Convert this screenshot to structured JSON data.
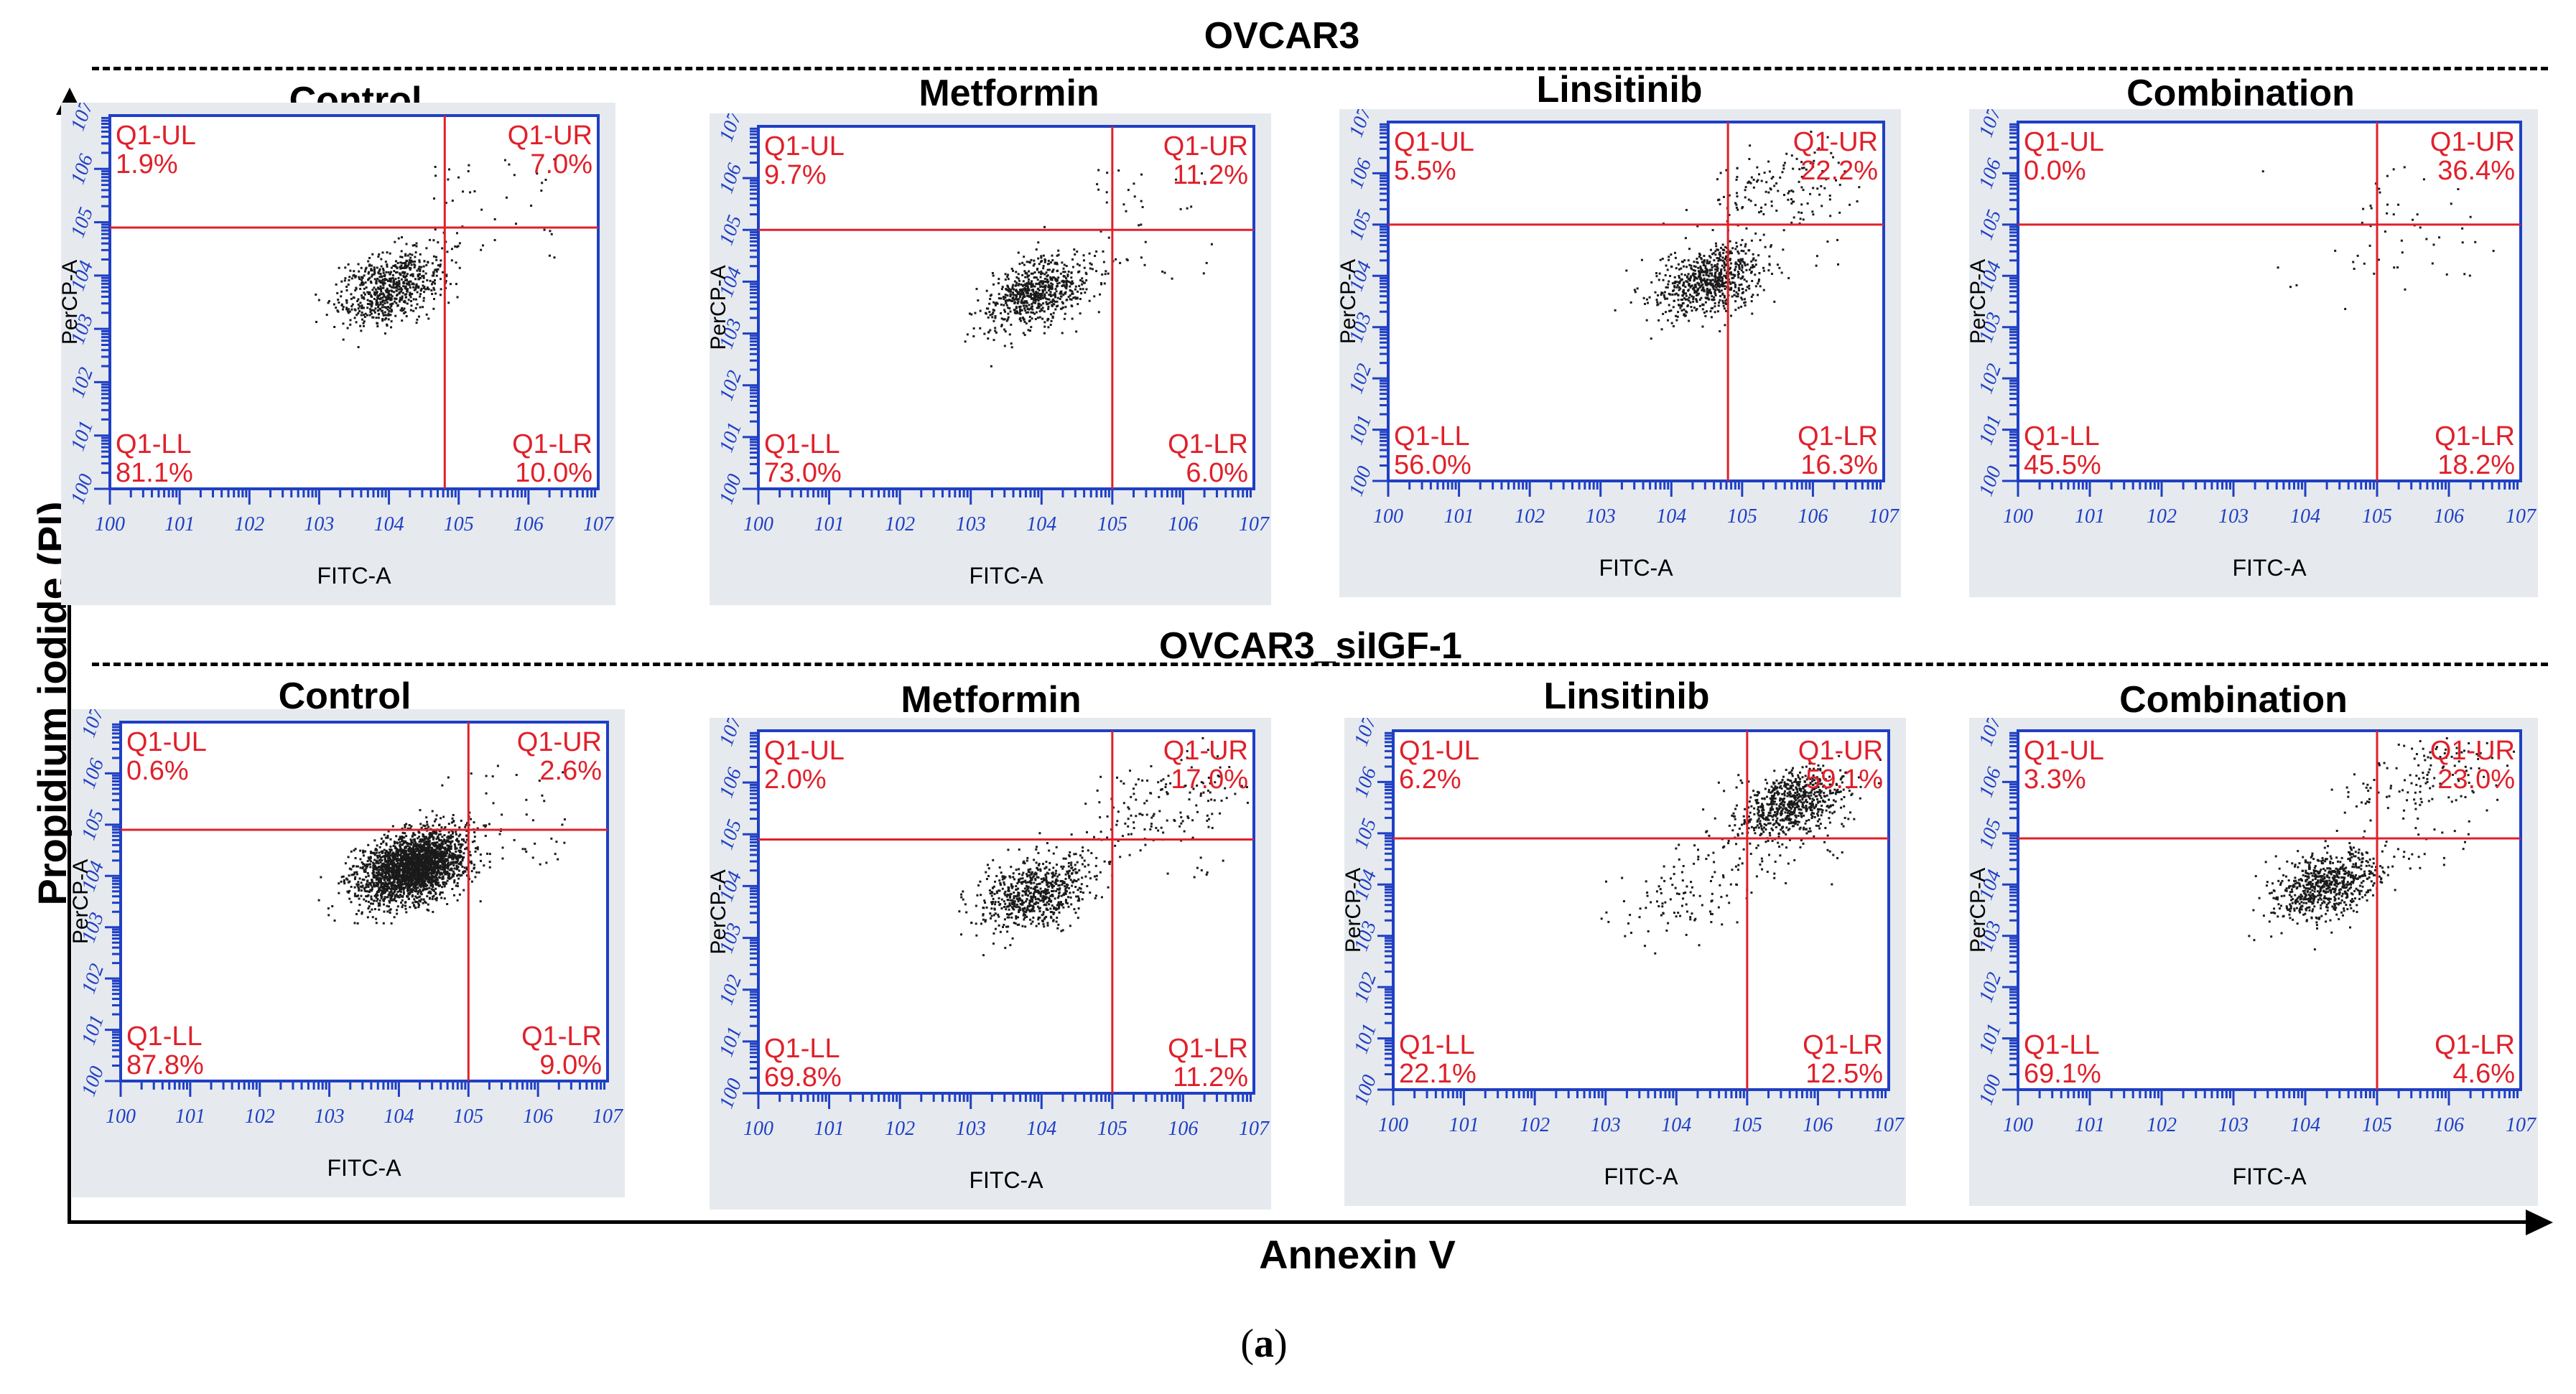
{
  "figure": {
    "y_title": "Propidium iodide (PI)",
    "x_title": "Annexin V",
    "caption_open": "(",
    "caption_letter": "a",
    "caption_close": ")"
  },
  "colors": {
    "plot_frame": "#1f3fc4",
    "gate": "#e0202a",
    "label": "#e0202a",
    "panel_bg": "#e6eaee",
    "dots": "#1a1a1a"
  },
  "rows": [
    {
      "title": "OVCAR3",
      "panels": [
        {
          "title": "Control",
          "xlabel": "FITC-A",
          "ylabel": "PerCP-A",
          "quadrants": {
            "UL": {
              "name": "Q1-UL",
              "value": "1.9%"
            },
            "UR": {
              "name": "Q1-UR",
              "value": "7.0%"
            },
            "LL": {
              "name": "Q1-LL",
              "value": "81.1%"
            },
            "LR": {
              "name": "Q1-LR",
              "value": "10.0%"
            }
          }
        },
        {
          "title": "Metformin",
          "xlabel": "FITC-A",
          "ylabel": "PerCP-A",
          "quadrants": {
            "UL": {
              "name": "Q1-UL",
              "value": "9.7%"
            },
            "UR": {
              "name": "Q1-UR",
              "value": "11.2%"
            },
            "LL": {
              "name": "Q1-LL",
              "value": "73.0%"
            },
            "LR": {
              "name": "Q1-LR",
              "value": "6.0%"
            }
          }
        },
        {
          "title": "Linsitinib",
          "xlabel": "FITC-A",
          "ylabel": "PerCP-A",
          "quadrants": {
            "UL": {
              "name": "Q1-UL",
              "value": "5.5%"
            },
            "UR": {
              "name": "Q1-UR",
              "value": "22.2%"
            },
            "LL": {
              "name": "Q1-LL",
              "value": "56.0%"
            },
            "LR": {
              "name": "Q1-LR",
              "value": "16.3%"
            }
          }
        },
        {
          "title": "Combination",
          "xlabel": "FITC-A",
          "ylabel": "PerCP-A",
          "quadrants": {
            "UL": {
              "name": "Q1-UL",
              "value": "0.0%"
            },
            "UR": {
              "name": "Q1-UR",
              "value": "36.4%"
            },
            "LL": {
              "name": "Q1-LL",
              "value": "45.5%"
            },
            "LR": {
              "name": "Q1-LR",
              "value": "18.2%"
            }
          }
        }
      ]
    },
    {
      "title": "OVCAR3_siIGF-1",
      "panels": [
        {
          "title": "Control",
          "xlabel": "FITC-A",
          "ylabel": "PerCP-A",
          "quadrants": {
            "UL": {
              "name": "Q1-UL",
              "value": "0.6%"
            },
            "UR": {
              "name": "Q1-UR",
              "value": "2.6%"
            },
            "LL": {
              "name": "Q1-LL",
              "value": "87.8%"
            },
            "LR": {
              "name": "Q1-LR",
              "value": "9.0%"
            }
          }
        },
        {
          "title": "Metformin",
          "xlabel": "FITC-A",
          "ylabel": "PerCP-A",
          "quadrants": {
            "UL": {
              "name": "Q1-UL",
              "value": "2.0%"
            },
            "UR": {
              "name": "Q1-UR",
              "value": "17.0%"
            },
            "LL": {
              "name": "Q1-LL",
              "value": "69.8%"
            },
            "LR": {
              "name": "Q1-LR",
              "value": "11.2%"
            }
          }
        },
        {
          "title": "Linsitinib",
          "xlabel": "FITC-A",
          "ylabel": "PerCP-A",
          "quadrants": {
            "UL": {
              "name": "Q1-UL",
              "value": "6.2%"
            },
            "UR": {
              "name": "Q1-UR",
              "value": "59.1%"
            },
            "LL": {
              "name": "Q1-LL",
              "value": "22.1%"
            },
            "LR": {
              "name": "Q1-LR",
              "value": "12.5%"
            }
          }
        },
        {
          "title": "Combination",
          "xlabel": "FITC-A",
          "ylabel": "PerCP-A",
          "quadrants": {
            "UL": {
              "name": "Q1-UL",
              "value": "3.3%"
            },
            "UR": {
              "name": "Q1-UR",
              "value": "23.0%"
            },
            "LL": {
              "name": "Q1-LL",
              "value": "69.1%"
            },
            "LR": {
              "name": "Q1-LR",
              "value": "4.6%"
            }
          }
        }
      ]
    }
  ],
  "chart_data": [
    {
      "type": "scatter",
      "panel": "OVCAR3 / Control",
      "xscale": "log",
      "yscale": "log",
      "xlim_decades": [
        0,
        7
      ],
      "ylim_decades": [
        0,
        7
      ],
      "gate_decades": {
        "x": 4.8,
        "y": 4.9
      },
      "population_centers": [
        {
          "x_decade": 4.0,
          "y_decade": 3.8,
          "weight": "dominant"
        }
      ],
      "quadrant_percent": {
        "UL": 1.9,
        "UR": 7.0,
        "LL": 81.1,
        "LR": 10.0
      }
    },
    {
      "type": "scatter",
      "panel": "OVCAR3 / Metformin",
      "xscale": "log",
      "yscale": "log",
      "xlim_decades": [
        0,
        7
      ],
      "ylim_decades": [
        0,
        7
      ],
      "gate_decades": {
        "x": 5.0,
        "y": 5.0
      },
      "population_centers": [
        {
          "x_decade": 3.9,
          "y_decade": 3.8,
          "weight": "dominant"
        }
      ],
      "quadrant_percent": {
        "UL": 9.7,
        "UR": 11.2,
        "LL": 73.0,
        "LR": 6.0
      }
    },
    {
      "type": "scatter",
      "panel": "OVCAR3 / Linsitinib",
      "xscale": "log",
      "yscale": "log",
      "xlim_decades": [
        0,
        7
      ],
      "ylim_decades": [
        0,
        7
      ],
      "gate_decades": {
        "x": 4.8,
        "y": 5.0
      },
      "population_centers": [
        {
          "x_decade": 4.5,
          "y_decade": 3.9,
          "weight": "dominant"
        },
        {
          "x_decade": 5.5,
          "y_decade": 5.7,
          "weight": "minor"
        }
      ],
      "quadrant_percent": {
        "UL": 5.5,
        "UR": 22.2,
        "LL": 56.0,
        "LR": 16.3
      }
    },
    {
      "type": "scatter",
      "panel": "OVCAR3 / Combination",
      "xscale": "log",
      "yscale": "log",
      "xlim_decades": [
        0,
        7
      ],
      "ylim_decades": [
        0,
        7
      ],
      "gate_decades": {
        "x": 5.0,
        "y": 5.0
      },
      "population_centers": [
        {
          "x_decade": 4.5,
          "y_decade": 4.0,
          "weight": "sparse"
        }
      ],
      "quadrant_percent": {
        "UL": 0.0,
        "UR": 36.4,
        "LL": 45.5,
        "LR": 18.2
      }
    },
    {
      "type": "scatter",
      "panel": "OVCAR3_siIGF-1 / Control",
      "xscale": "log",
      "yscale": "log",
      "xlim_decades": [
        0,
        7
      ],
      "ylim_decades": [
        0,
        7
      ],
      "gate_decades": {
        "x": 5.0,
        "y": 4.9
      },
      "population_centers": [
        {
          "x_decade": 4.2,
          "y_decade": 4.2,
          "weight": "dominant"
        }
      ],
      "quadrant_percent": {
        "UL": 0.6,
        "UR": 2.6,
        "LL": 87.8,
        "LR": 9.0
      }
    },
    {
      "type": "scatter",
      "panel": "OVCAR3_siIGF-1 / Metformin",
      "xscale": "log",
      "yscale": "log",
      "xlim_decades": [
        0,
        7
      ],
      "ylim_decades": [
        0,
        7
      ],
      "gate_decades": {
        "x": 5.0,
        "y": 4.9
      },
      "population_centers": [
        {
          "x_decade": 3.9,
          "y_decade": 3.9,
          "weight": "dominant"
        },
        {
          "x_decade": 5.9,
          "y_decade": 5.7,
          "weight": "minor"
        }
      ],
      "quadrant_percent": {
        "UL": 2.0,
        "UR": 17.0,
        "LL": 69.8,
        "LR": 11.2
      }
    },
    {
      "type": "scatter",
      "panel": "OVCAR3_siIGF-1 / Linsitinib",
      "xscale": "log",
      "yscale": "log",
      "xlim_decades": [
        0,
        7
      ],
      "ylim_decades": [
        0,
        7
      ],
      "gate_decades": {
        "x": 5.0,
        "y": 4.9
      },
      "population_centers": [
        {
          "x_decade": 5.6,
          "y_decade": 5.6,
          "weight": "dominant"
        },
        {
          "x_decade": 4.2,
          "y_decade": 3.8,
          "weight": "minor"
        }
      ],
      "quadrant_percent": {
        "UL": 6.2,
        "UR": 59.1,
        "LL": 22.1,
        "LR": 12.5
      }
    },
    {
      "type": "scatter",
      "panel": "OVCAR3_siIGF-1 / Combination",
      "xscale": "log",
      "yscale": "log",
      "xlim_decades": [
        0,
        7
      ],
      "ylim_decades": [
        0,
        7
      ],
      "gate_decades": {
        "x": 5.0,
        "y": 4.9
      },
      "population_centers": [
        {
          "x_decade": 4.3,
          "y_decade": 4.0,
          "weight": "dominant"
        },
        {
          "x_decade": 5.8,
          "y_decade": 6.2,
          "weight": "minor"
        }
      ],
      "quadrant_percent": {
        "UL": 3.3,
        "UR": 23.0,
        "LL": 69.1,
        "LR": 4.6
      }
    }
  ]
}
